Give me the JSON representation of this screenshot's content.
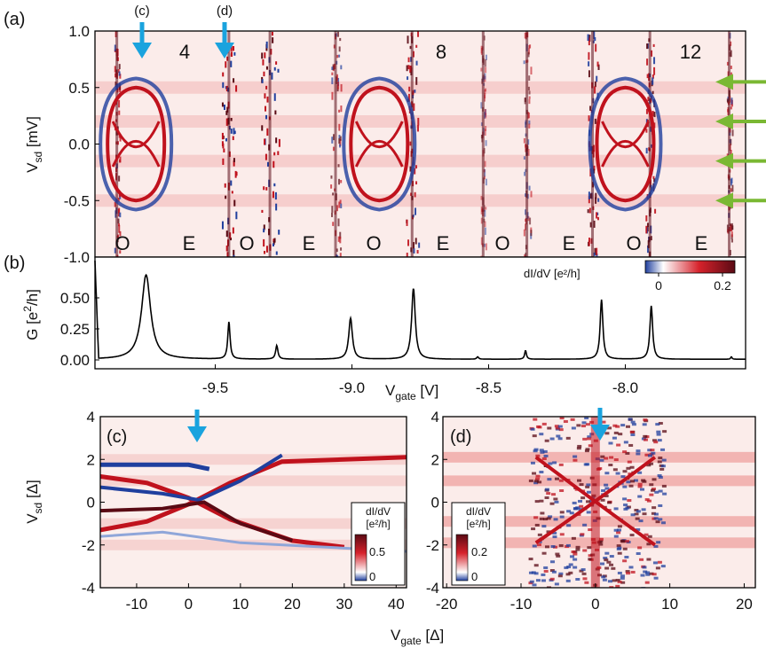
{
  "colors": {
    "red": "#c0121d",
    "dark_red": "#5a0a14",
    "blue": "#1f3f9e",
    "white": "#ffffff",
    "arrow_blue": "#1aa3de",
    "arrow_green": "#7ab833",
    "frame": "#000000"
  },
  "panel_a": {
    "tag": "(a)",
    "ylabel_main": "V",
    "ylabel_sub": "sd",
    "ylabel_unit": " [mV]",
    "yticks": [
      "1.0",
      "0.5",
      "0.0",
      "-0.5",
      "-1.0"
    ],
    "arrow_labels": [
      "(c)",
      "(d)"
    ],
    "numbers": [
      "4",
      "8",
      "12"
    ],
    "parity": [
      "O",
      "E",
      "O",
      "E",
      "O",
      "E",
      "O",
      "E",
      "O",
      "E"
    ],
    "right_arrows_icon": "green-arrow-icon"
  },
  "panel_b": {
    "tag": "(b)",
    "ylabel_main": "G [e",
    "ylabel_sup": "2",
    "ylabel_end": "/h]",
    "xlabel_main": "V",
    "xlabel_sub": "gate",
    "xlabel_unit": " [V]",
    "colorbar_label": "dI/dV [e²/h]",
    "colorbar_ticks": [
      "0",
      "0.2"
    ]
  },
  "panel_c": {
    "tag": "(c)",
    "ylabel_main": "V",
    "ylabel_sub": "sd",
    "ylabel_unit": " [Δ]",
    "colorbar_title1": "dI/dV",
    "colorbar_title2": "[e²/h]",
    "colorbar_ticks": [
      "0.5",
      "0"
    ]
  },
  "panel_d": {
    "tag": "(d)",
    "colorbar_title1": "dI/dV",
    "colorbar_title2": "[e²/h]",
    "colorbar_ticks": [
      "0.2",
      "0"
    ]
  },
  "bottom_xlabel": {
    "main": "V",
    "sub": "gate",
    "unit": " [Δ]"
  },
  "chart_data": [
    {
      "type": "heatmap",
      "panel": "(a)",
      "x_range": [
        -9.94,
        -7.56
      ],
      "ylim": [
        -1.0,
        1.0
      ],
      "ylabel": "Vsd [mV]",
      "yticks": [
        1.0,
        0.5,
        0.0,
        -0.5,
        -1.0
      ],
      "colorscale_ticks": [
        0,
        0.2
      ],
      "colorscale_label": "dI/dV [e²/h]",
      "annotations": [
        "(c)",
        "(d)",
        "4",
        "8",
        "12",
        "O",
        "E",
        "O",
        "E",
        "O",
        "E",
        "O",
        "E",
        "O",
        "E"
      ],
      "arrows_gate": [
        -9.75,
        -9.45
      ],
      "green_arrow_vsd": [
        0.55,
        0.2,
        -0.15,
        -0.5
      ]
    },
    {
      "type": "line",
      "panel": "(b)",
      "xlabel": "Vgate [V]",
      "ylabel": "G [e²/h]",
      "xlim": [
        -9.94,
        -7.56
      ],
      "ylim": [
        0,
        0.8
      ],
      "xticks": [
        -9.5,
        -9.0,
        -8.5,
        -8.0
      ],
      "yticks": [
        0.0,
        0.25,
        0.5
      ],
      "ytick_labels": [
        "0.00",
        "0.25",
        "0.50"
      ],
      "peaks": [
        {
          "x": -9.753,
          "height": 0.68,
          "width": 0.02
        },
        {
          "x": -9.45,
          "height": 0.3,
          "width": 0.005
        },
        {
          "x": -9.275,
          "height": 0.11,
          "width": 0.005
        },
        {
          "x": -9.005,
          "height": 0.33,
          "width": 0.008
        },
        {
          "x": -8.775,
          "height": 0.57,
          "width": 0.008
        },
        {
          "x": -8.54,
          "height": 0.02,
          "width": 0.004
        },
        {
          "x": -8.365,
          "height": 0.07,
          "width": 0.004
        },
        {
          "x": -8.087,
          "height": 0.48,
          "width": 0.006
        },
        {
          "x": -7.905,
          "height": 0.43,
          "width": 0.006
        },
        {
          "x": -7.612,
          "height": 0.02,
          "width": 0.003
        }
      ]
    },
    {
      "type": "heatmap",
      "panel": "(c)",
      "xlabel": "Vgate [Δ]",
      "ylabel": "Vsd [Δ]",
      "xlim": [
        -17,
        42
      ],
      "ylim": [
        -4,
        4
      ],
      "xticks": [
        -10,
        0,
        10,
        20,
        30,
        40
      ],
      "yticks": [
        4,
        2,
        0,
        -2,
        -4
      ],
      "colorscale_ticks": [
        0,
        0.5
      ],
      "arrow_x": 0
    },
    {
      "type": "heatmap",
      "panel": "(d)",
      "xlabel": "Vgate [Δ]",
      "xlim": [
        -20.5,
        21.5
      ],
      "ylim": [
        -4,
        4
      ],
      "xticks": [
        -20,
        -10,
        0,
        10,
        20
      ],
      "yticks": [
        4,
        2,
        0,
        -2,
        -4
      ],
      "colorscale_ticks": [
        0,
        0.2
      ],
      "arrow_x": 0
    }
  ]
}
